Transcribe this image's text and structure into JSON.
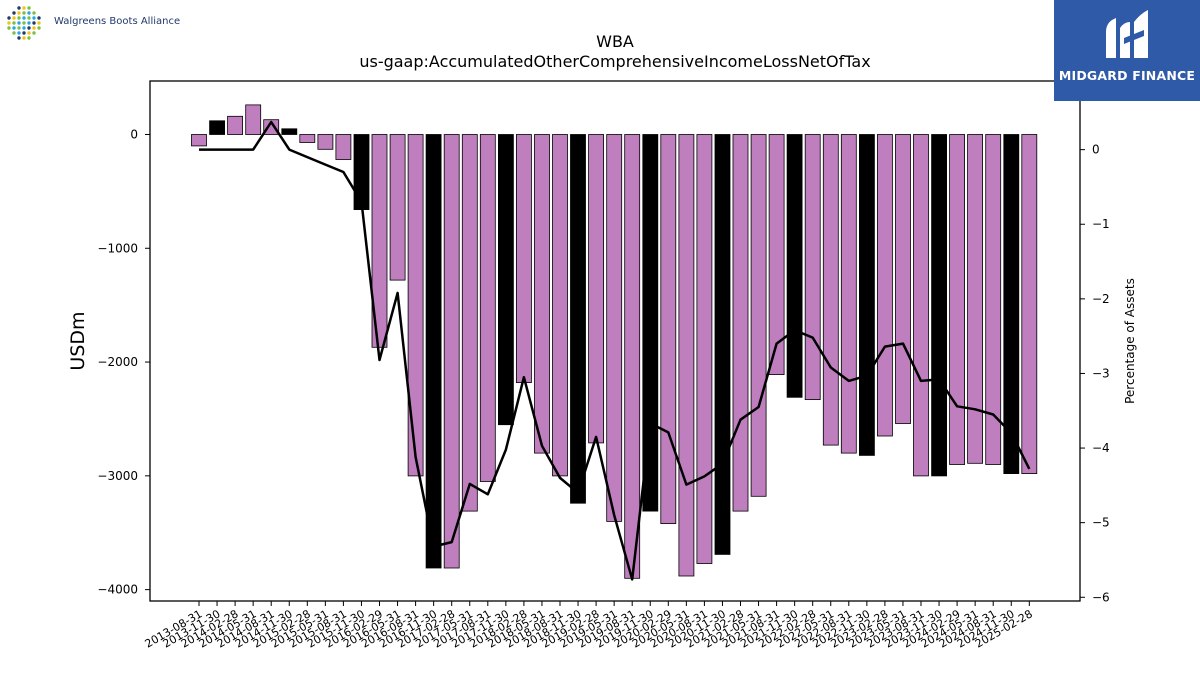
{
  "logos": {
    "left_text": "Walgreens Boots Alliance",
    "right_text": "MIDGARD FINANCE",
    "right_bg": "#2f5aa8"
  },
  "chart_data": {
    "type": "bar",
    "title": "WBA",
    "subtitle": "us-gaap:AccumulatedOtherComprehensiveIncomeLossNetOfTax",
    "ylabel": "USDm",
    "y2label": "Percentage of Assets",
    "ylim": [
      -4100,
      470
    ],
    "y2lim": [
      -6.05,
      0.92
    ],
    "yticks": [
      0,
      -1000,
      -2000,
      -3000,
      -4000
    ],
    "yticklabels": [
      "0",
      "−1000",
      "−2000",
      "−3000",
      "−4000"
    ],
    "y2ticks": [
      0,
      -1,
      -2,
      -3,
      -4,
      -5,
      -6
    ],
    "y2ticklabels": [
      "0",
      "−1",
      "−2",
      "−3",
      "−4",
      "−5",
      "−6"
    ],
    "bar_color": "#bf7fbf",
    "highlight_color": "#000000",
    "line_color": "#000000",
    "categories": [
      "2013-08-31",
      "2013-11-30",
      "2014-02-28",
      "2014-05-31",
      "2014-08-31",
      "2014-11-30",
      "2015-02-28",
      "2015-05-31",
      "2015-08-31",
      "2015-11-30",
      "2016-02-29",
      "2016-05-31",
      "2016-08-31",
      "2016-11-30",
      "2017-02-28",
      "2017-05-31",
      "2017-08-31",
      "2017-11-30",
      "2018-02-28",
      "2018-05-31",
      "2018-08-31",
      "2018-11-30",
      "2019-02-28",
      "2019-05-31",
      "2019-08-31",
      "2019-11-30",
      "2020-02-29",
      "2020-05-31",
      "2020-08-31",
      "2020-11-30",
      "2021-02-28",
      "2021-05-31",
      "2021-08-31",
      "2021-11-30",
      "2022-02-28",
      "2022-05-31",
      "2022-08-31",
      "2022-11-30",
      "2023-02-28",
      "2023-05-31",
      "2023-08-31",
      "2023-11-30",
      "2024-02-29",
      "2024-05-31",
      "2024-08-31",
      "2024-11-30",
      "2025-02-28"
    ],
    "values": [
      -100,
      120,
      160,
      260,
      130,
      50,
      -70,
      -130,
      -220,
      -660,
      -1870,
      -1280,
      -3000,
      -3810,
      -3810,
      -3310,
      -3050,
      -2550,
      -2180,
      -2800,
      -3000,
      -3240,
      -2710,
      -3400,
      -3900,
      -3310,
      -3420,
      -3880,
      -3770,
      -3690,
      -3310,
      -3180,
      -2110,
      -2310,
      -2330,
      -2730,
      -2800,
      -2820,
      -2650,
      -2540,
      -3000,
      -3000,
      -2900,
      -2890,
      -2900,
      -2980,
      -2980
    ],
    "highlight": [
      false,
      true,
      false,
      false,
      false,
      true,
      false,
      false,
      false,
      true,
      false,
      false,
      false,
      true,
      false,
      false,
      false,
      true,
      false,
      false,
      false,
      true,
      false,
      false,
      false,
      true,
      false,
      false,
      false,
      true,
      false,
      false,
      false,
      true,
      false,
      false,
      false,
      true,
      false,
      false,
      false,
      true,
      false,
      false,
      false,
      true,
      false
    ],
    "series": [
      {
        "type": "line",
        "axis": "right",
        "values": [
          0.0,
          0.0,
          0.0,
          0.0,
          0.37,
          0.0,
          -0.1,
          -0.2,
          -0.3,
          -0.7,
          -2.82,
          -1.92,
          -4.12,
          -5.32,
          -5.26,
          -4.48,
          -4.62,
          -4.02,
          -3.05,
          -3.97,
          -4.4,
          -4.6,
          -3.85,
          -4.9,
          -5.76,
          -3.67,
          -3.79,
          -4.49,
          -4.38,
          -4.21,
          -3.62,
          -3.45,
          -2.6,
          -2.42,
          -2.52,
          -2.92,
          -3.1,
          -3.03,
          -2.64,
          -2.6,
          -3.1,
          -3.08,
          -3.44,
          -3.48,
          -3.55,
          -3.8,
          -4.28
        ]
      }
    ],
    "legend": "none",
    "grid": false
  }
}
